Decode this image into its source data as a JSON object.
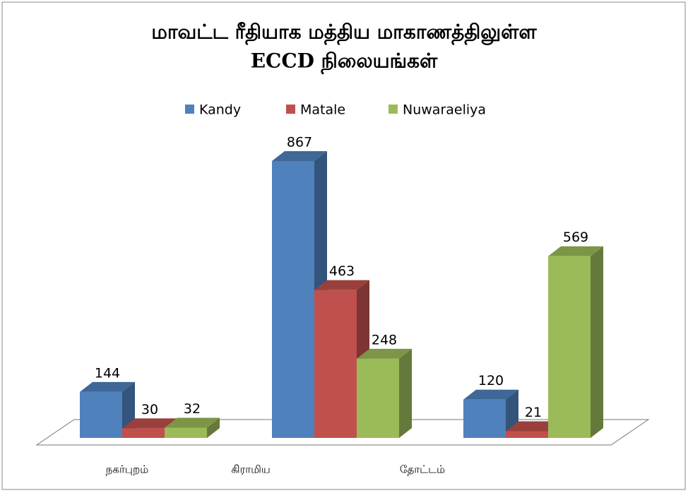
{
  "chart_data": {
    "type": "bar3d",
    "title": [
      "மாவட்ட ரீதியாக மத்திய மாகாணத்திலுள்ள",
      "ECCD நிலையங்கள்"
    ],
    "categories": [
      "நகர்புறம்",
      "கிராமிய",
      "தோட்டம்"
    ],
    "series": [
      {
        "name": "Kandy",
        "color": "#4f81bd",
        "values": [
          144,
          867,
          120
        ]
      },
      {
        "name": "Matale",
        "color": "#c0504d",
        "values": [
          30,
          463,
          21
        ]
      },
      {
        "name": "Nuwaraeliya",
        "color": "#9bbb59",
        "values": [
          32,
          248,
          569
        ]
      }
    ],
    "legend": "top"
  }
}
